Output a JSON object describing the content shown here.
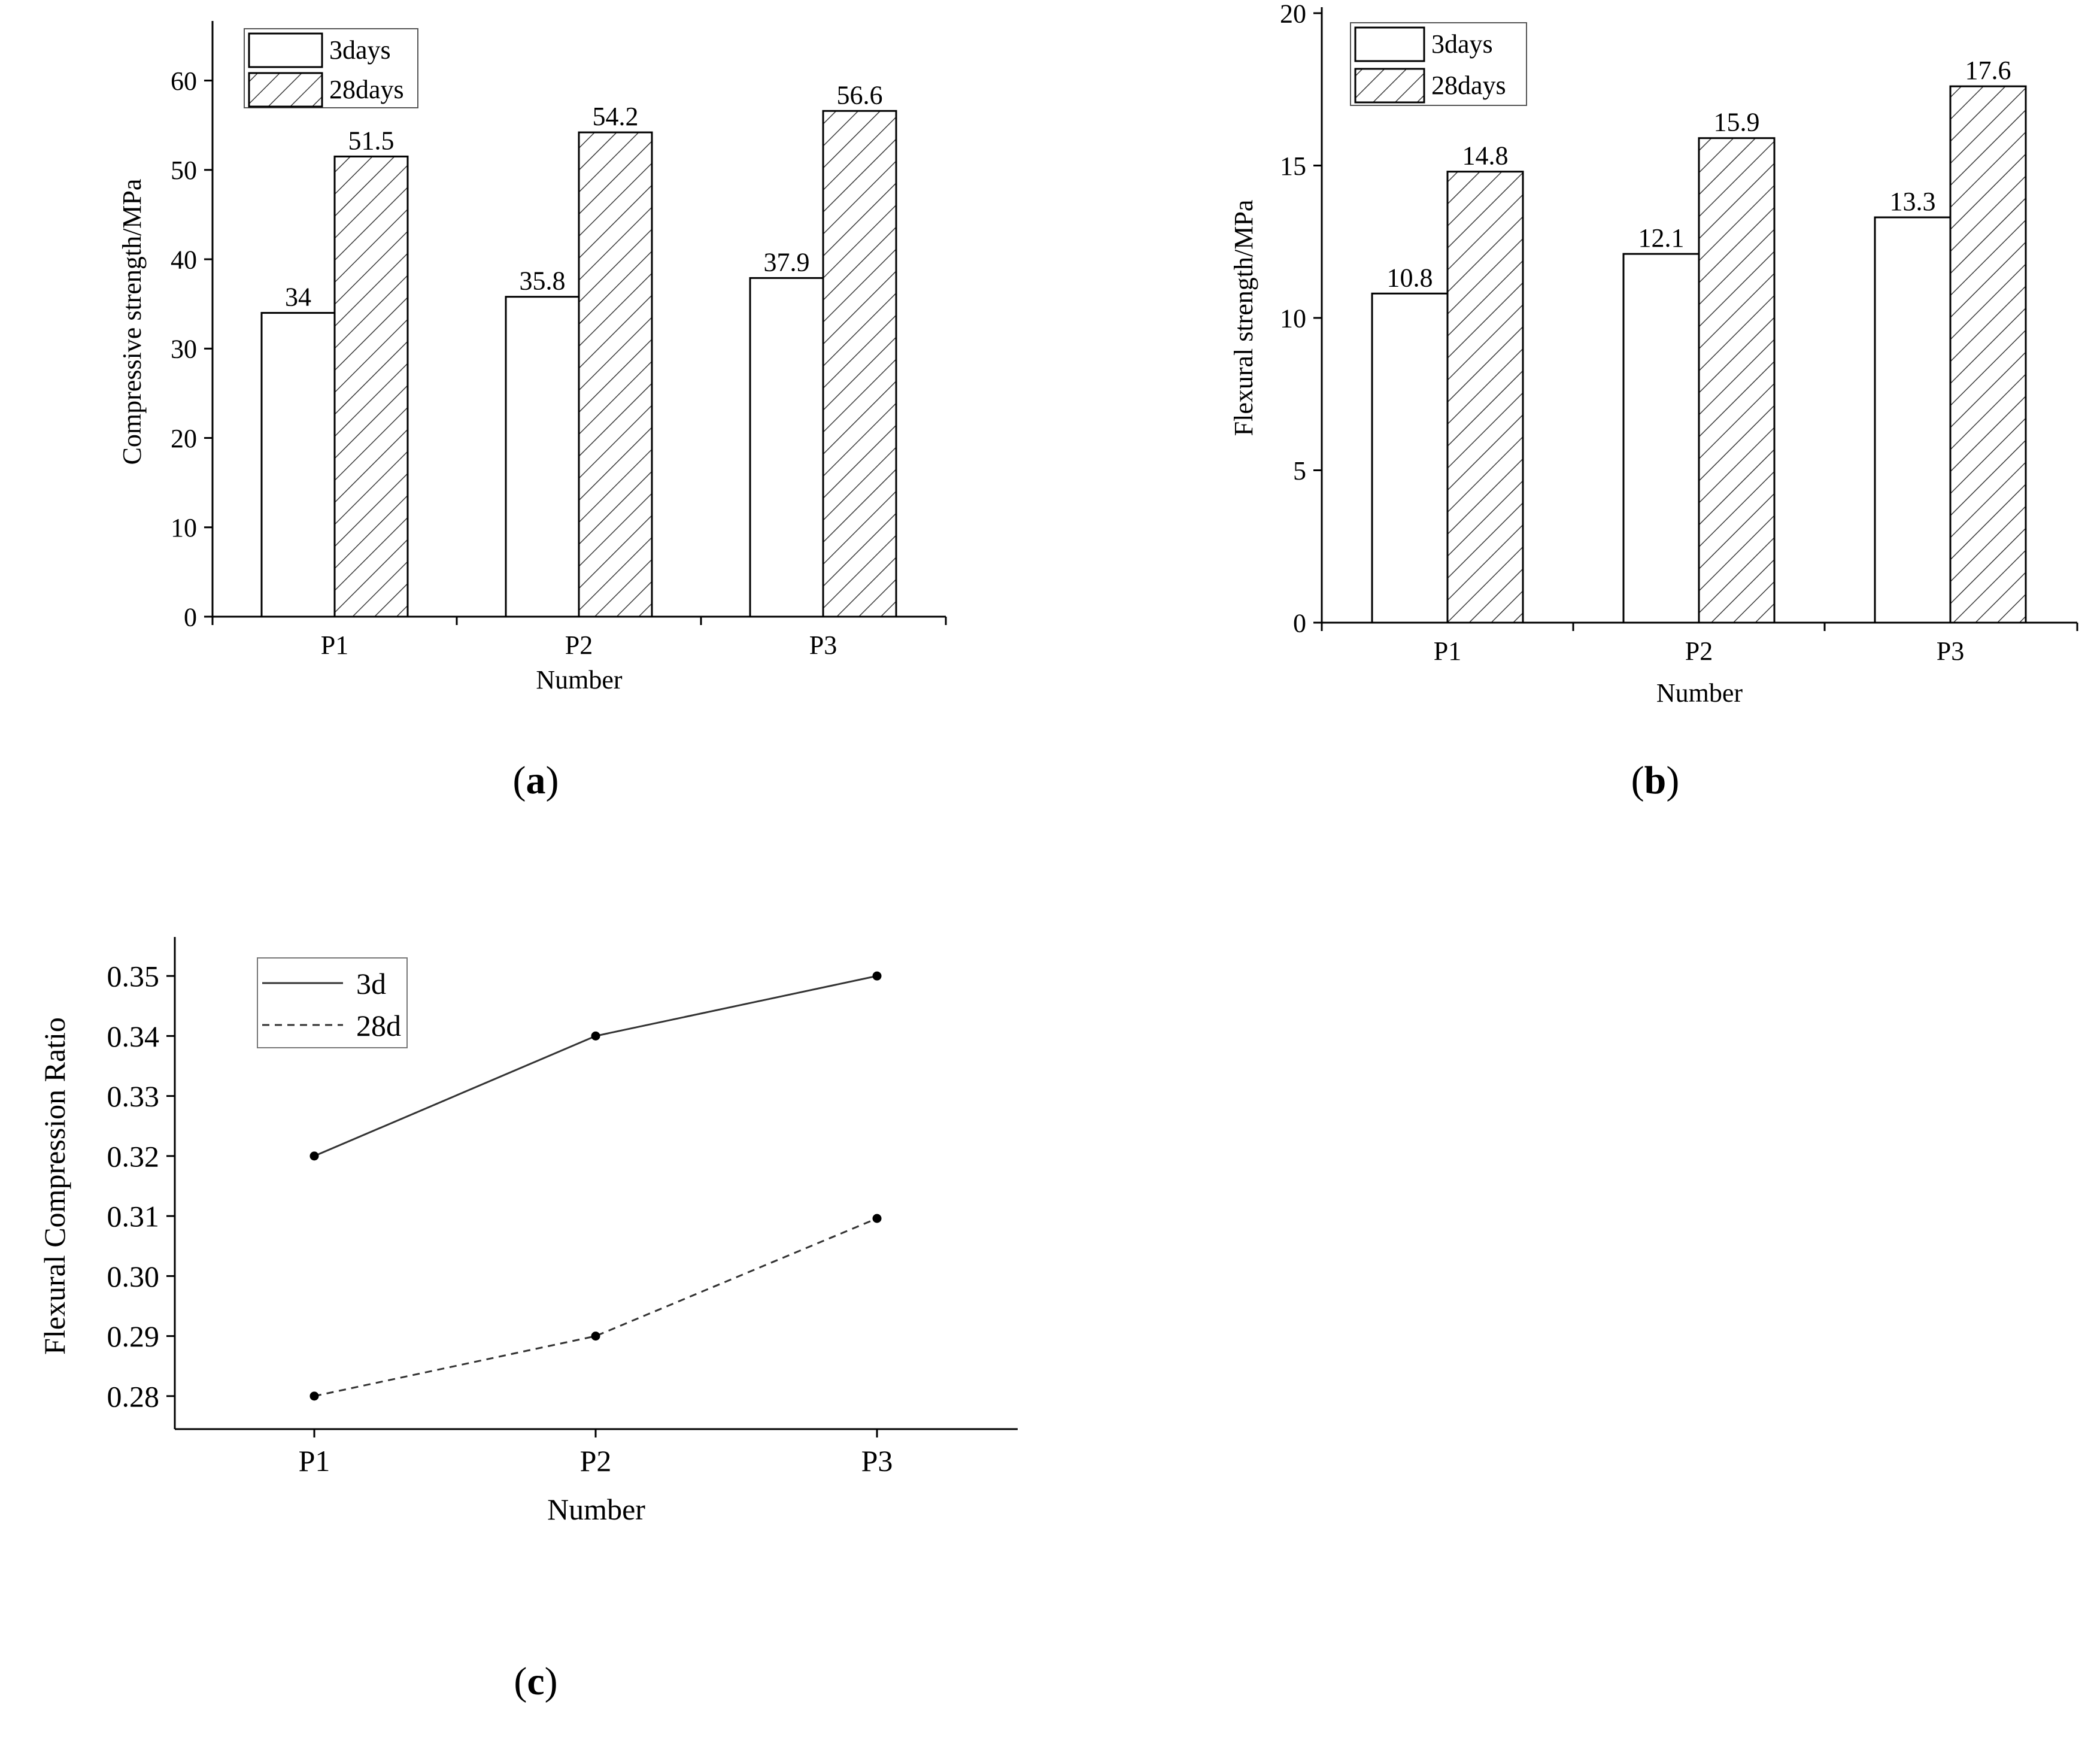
{
  "chart_data": [
    {
      "id": "a",
      "type": "bar",
      "panel_label": "a",
      "title": "",
      "categories": [
        "P1",
        "P2",
        "P3"
      ],
      "series": [
        {
          "name": "3days",
          "values": [
            34,
            35.8,
            37.9
          ],
          "labels": [
            "34",
            "35.8",
            "37.9"
          ],
          "pattern": "none"
        },
        {
          "name": "28days",
          "values": [
            51.5,
            54.2,
            56.6
          ],
          "labels": [
            "51.5",
            "54.2",
            "56.6"
          ],
          "pattern": "hatch"
        }
      ],
      "xlabel": "Number",
      "ylabel": "Compressive strength/MPa",
      "ylim": [
        0,
        66
      ],
      "yticks": [
        0,
        10,
        20,
        30,
        40,
        50,
        60
      ],
      "ytick_labels": [
        "0",
        "10",
        "20",
        "30",
        "40",
        "50",
        "60"
      ],
      "grid": false,
      "legend_position": "top-left"
    },
    {
      "id": "b",
      "type": "bar",
      "panel_label": "b",
      "title": "",
      "categories": [
        "P1",
        "P2",
        "P3"
      ],
      "series": [
        {
          "name": "3days",
          "values": [
            10.8,
            12.1,
            13.3
          ],
          "labels": [
            "10.8",
            "12.1",
            "13.3"
          ],
          "pattern": "none"
        },
        {
          "name": "28days",
          "values": [
            14.8,
            15.9,
            17.6
          ],
          "labels": [
            "14.8",
            "15.9",
            "17.6"
          ],
          "pattern": "hatch"
        }
      ],
      "xlabel": "Number",
      "ylabel": "Flexural strength/MPa",
      "ylim": [
        0,
        20
      ],
      "yticks": [
        0,
        5,
        10,
        15,
        20
      ],
      "ytick_labels": [
        "0",
        "5",
        "10",
        "15",
        "20"
      ],
      "grid": false,
      "legend_position": "top-left"
    },
    {
      "id": "c",
      "type": "line",
      "panel_label": "c",
      "title": "",
      "categories": [
        "P1",
        "P2",
        "P3"
      ],
      "series": [
        {
          "name": "3d",
          "values": [
            0.32,
            0.34,
            0.35
          ],
          "line_style": "solid"
        },
        {
          "name": "28d",
          "values": [
            0.28,
            0.29,
            0.3096
          ],
          "line_style": "dashed"
        }
      ],
      "xlabel": "Number",
      "ylabel": "Flexural Compression Ratio",
      "ylim": [
        0.2745,
        0.3555
      ],
      "yticks": [
        0.28,
        0.29,
        0.3,
        0.31,
        0.32,
        0.33,
        0.34,
        0.35
      ],
      "ytick_labels": [
        "0.28",
        "0.29",
        "0.30",
        "0.31",
        "0.32",
        "0.33",
        "0.34",
        "0.35"
      ],
      "grid": false,
      "legend_position": "top-left"
    }
  ]
}
